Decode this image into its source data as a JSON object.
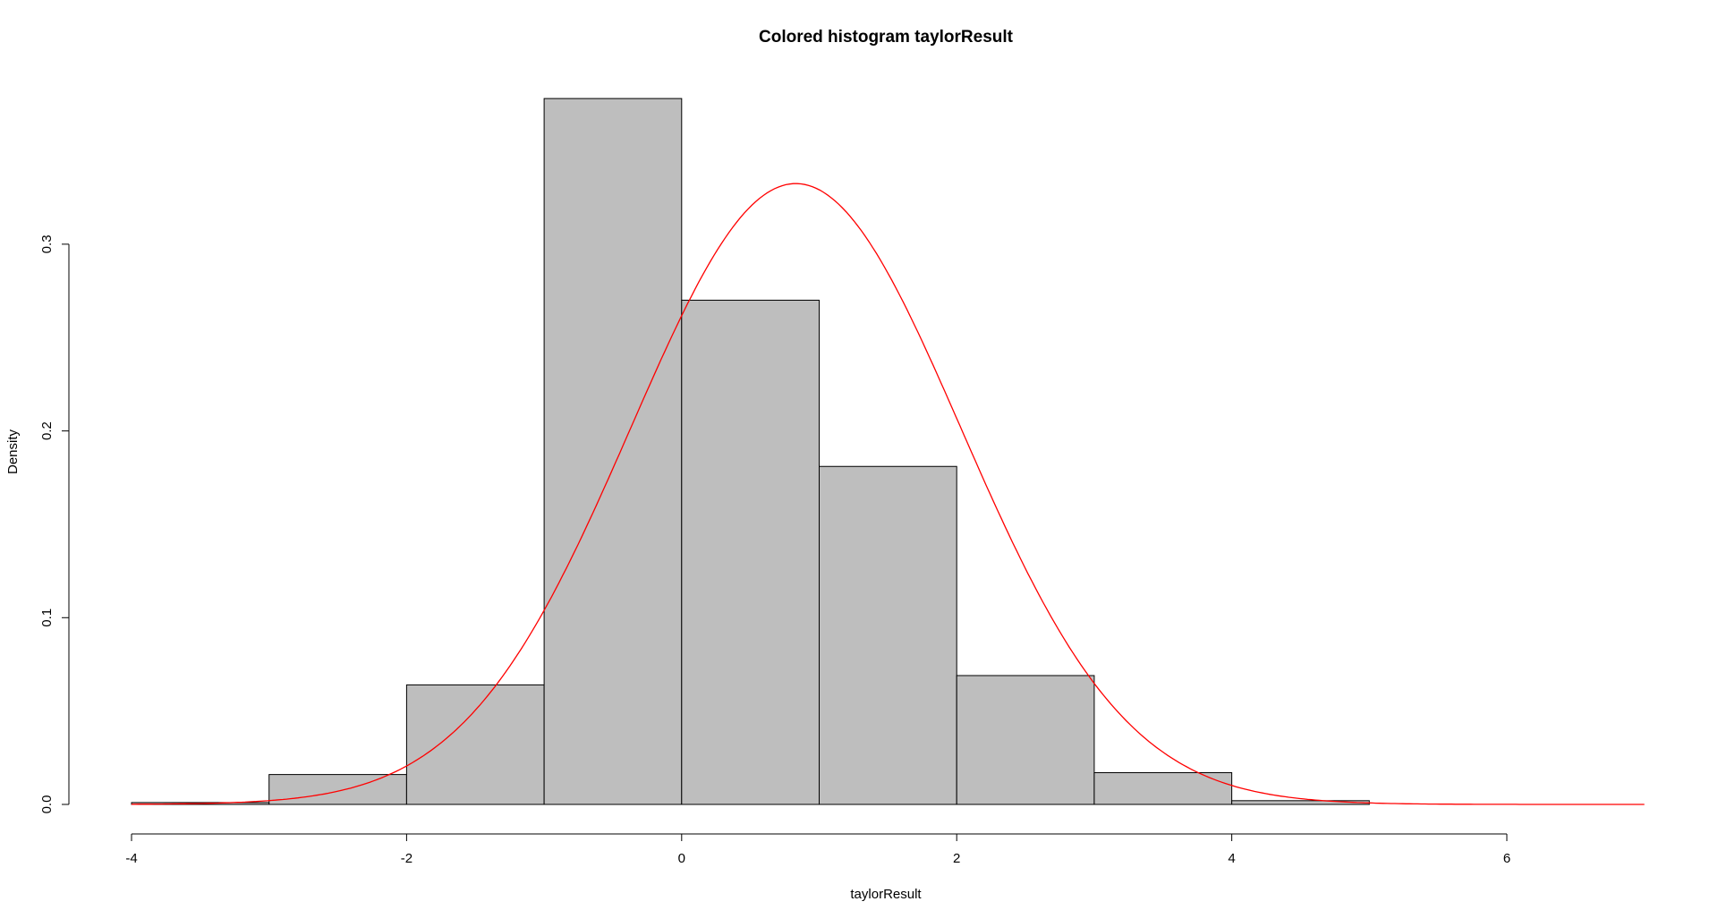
{
  "chart_data": {
    "type": "bar",
    "title": "Colored histogram taylorResult",
    "xlabel": "taylorResult",
    "ylabel": "Density",
    "xlim": [
      -4,
      7
    ],
    "ylim": [
      0,
      0.38
    ],
    "x_ticks": [
      "-4",
      "-2",
      "0",
      "2",
      "4",
      "6"
    ],
    "y_ticks": [
      "0.0",
      "0.1",
      "0.2",
      "0.3"
    ],
    "grid": false,
    "bin_edges": [
      -4,
      -3,
      -2,
      -1,
      0,
      1,
      2,
      3,
      4,
      5
    ],
    "values": [
      0.001,
      0.016,
      0.064,
      0.378,
      0.27,
      0.181,
      0.069,
      0.017,
      0.002
    ],
    "bar_color": "#bebebe",
    "curve": {
      "type": "normal-density",
      "mean": 0.83,
      "sd": 1.2,
      "x_range": [
        -4,
        7
      ],
      "color": "#ff0000"
    }
  }
}
